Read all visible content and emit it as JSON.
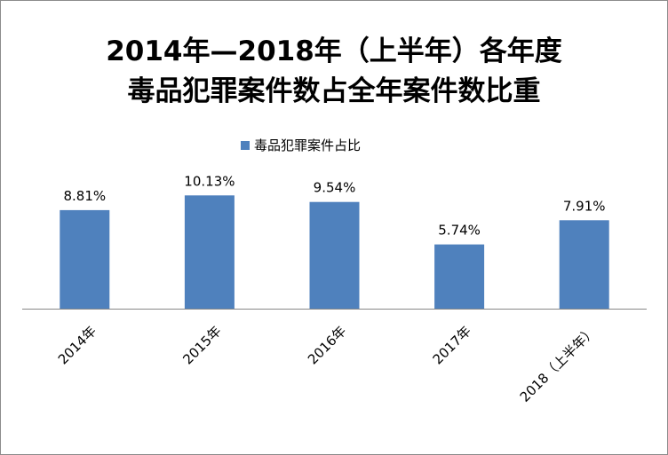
{
  "chart_data": {
    "type": "bar",
    "title_lines": [
      "2014年—2018年（上半年）各年度",
      "毒品犯罪案件数占全年案件数比重"
    ],
    "categories": [
      "2014年",
      "2015年",
      "2016年",
      "2017年",
      "2018（上半年）"
    ],
    "series": [
      {
        "name": "毒品犯罪案件占比",
        "values": [
          8.81,
          10.13,
          9.54,
          5.74,
          7.91
        ],
        "labels": [
          "8.81%",
          "10.13%",
          "9.54%",
          "5.74%",
          "7.91%"
        ]
      }
    ],
    "ylim": [
      0,
      11.5
    ],
    "grid": false,
    "legend_position": "top",
    "colors": {
      "bar": "#4f81bd",
      "axis": "#868686"
    }
  }
}
